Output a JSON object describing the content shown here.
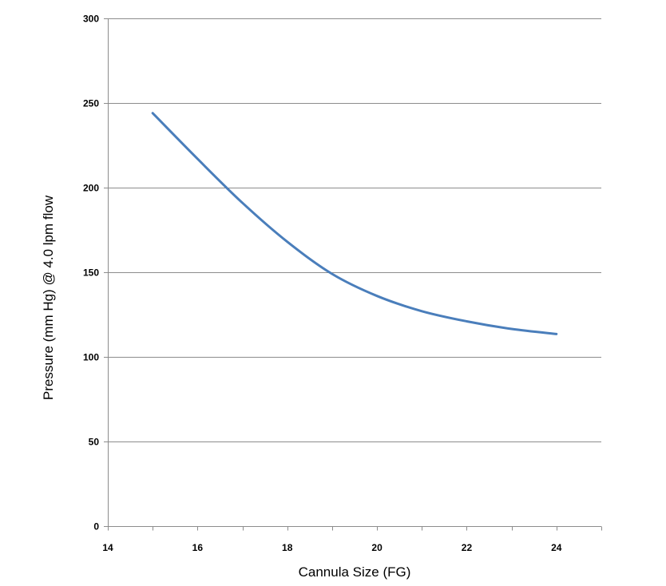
{
  "chart_data": {
    "type": "line",
    "title": "",
    "xlabel": "Cannula Size (FG)",
    "ylabel": "Pressure (mm Hg) @ 4.0 lpm flow",
    "xlim": [
      14,
      25
    ],
    "ylim": [
      0,
      300
    ],
    "x_ticks": [
      14,
      16,
      18,
      20,
      22,
      24
    ],
    "y_ticks": [
      0,
      50,
      100,
      150,
      200,
      250,
      300
    ],
    "grid": "horizontal",
    "legend": "none",
    "series": [
      {
        "color": "#4a7ebb",
        "x": [
          15,
          16,
          17,
          18,
          19,
          20,
          21,
          22,
          23,
          24
        ],
        "y": [
          244,
          217,
          191,
          168,
          149,
          136,
          127,
          121,
          116.5,
          113.5
        ]
      }
    ]
  }
}
